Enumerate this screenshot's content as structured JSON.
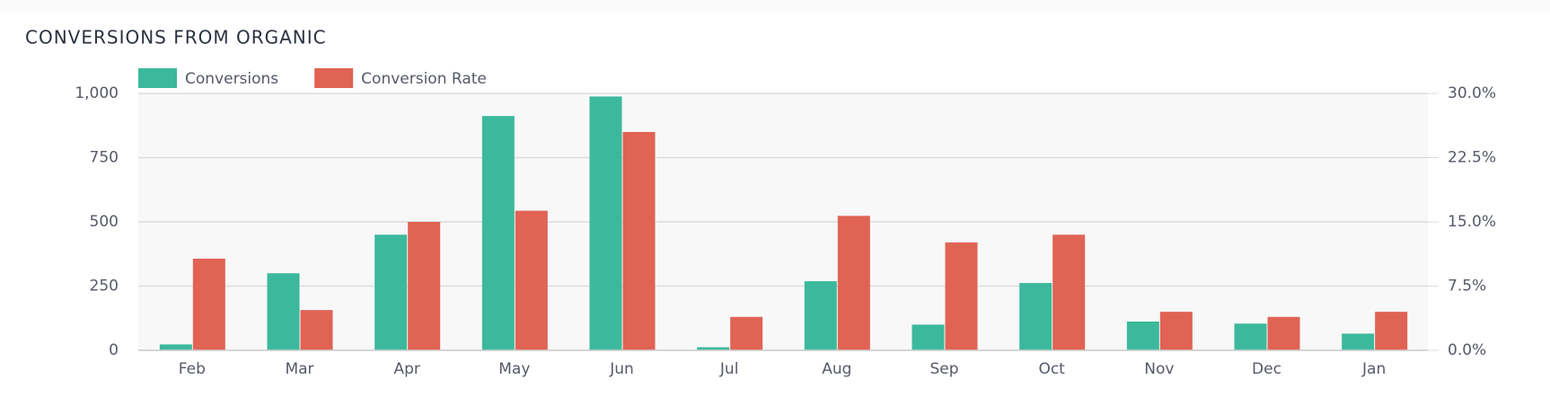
{
  "chart_data": {
    "type": "bar",
    "title": "CONVERSIONS FROM ORGANIC",
    "categories": [
      "Feb",
      "Mar",
      "Apr",
      "May",
      "Jun",
      "Jul",
      "Aug",
      "Sep",
      "Oct",
      "Nov",
      "Dec",
      "Jan"
    ],
    "series": [
      {
        "name": "Conversions",
        "color": "#3cb99c",
        "values": [
          23,
          300,
          450,
          912,
          988,
          12,
          269,
          100,
          262,
          112,
          104,
          65
        ]
      },
      {
        "name": "Conversion Rate",
        "color": "#e06354",
        "axis": "y2",
        "values": [
          10.7,
          4.7,
          15.0,
          16.3,
          25.5,
          3.9,
          15.7,
          12.6,
          13.5,
          4.5,
          3.9,
          4.5
        ]
      }
    ],
    "ylim": [
      0,
      1000
    ],
    "yticks": [
      0,
      250,
      500,
      750,
      {
        "value": 1000,
        "label": "1,000"
      }
    ],
    "y2lim": [
      0,
      30
    ],
    "y2ticks": [
      {
        "value": 0,
        "label": "0.0%"
      },
      {
        "value": 7.5,
        "label": "7.5%"
      },
      {
        "value": 15,
        "label": "15.0%"
      },
      {
        "value": 22.5,
        "label": "22.5%"
      },
      {
        "value": 30,
        "label": "30.0%"
      }
    ],
    "grid": true
  }
}
